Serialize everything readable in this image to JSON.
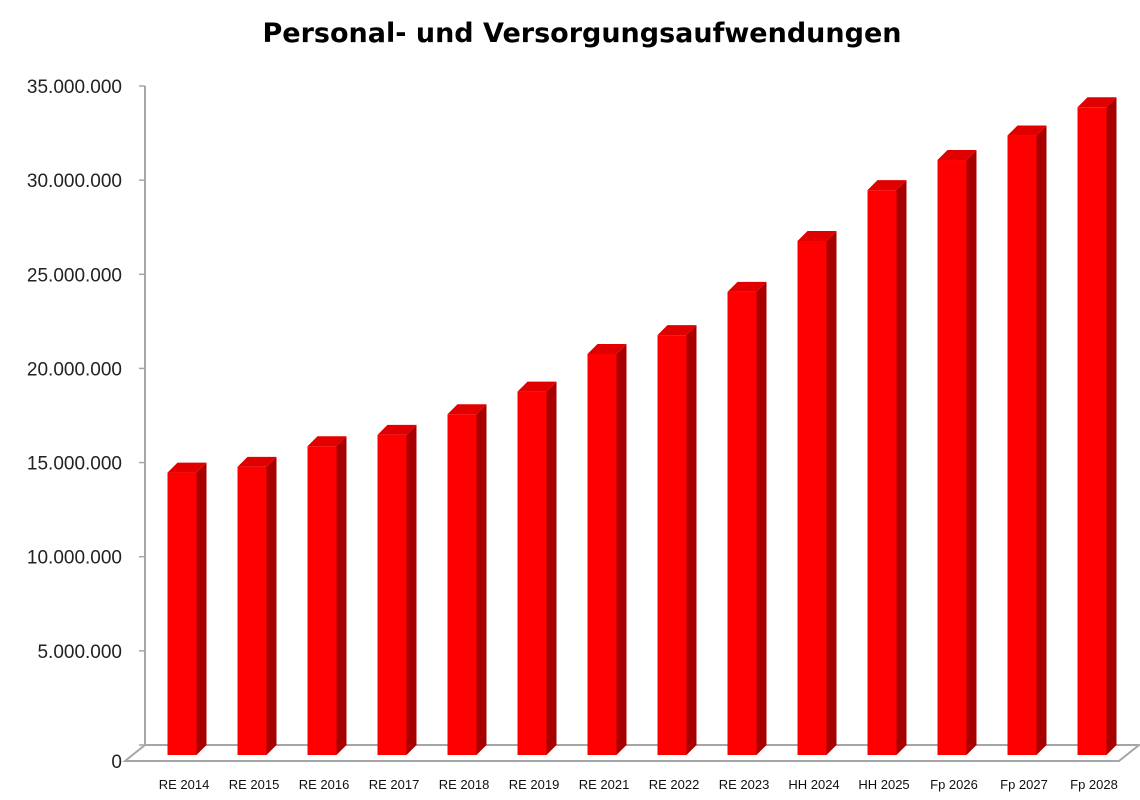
{
  "colors": {
    "bar_front": "#ff0000",
    "bar_side": "#a80000",
    "bar_top": "#e00000",
    "axis": "#a6a6a6"
  },
  "chart_data": {
    "type": "bar",
    "title": "Personal- und Versorgungsaufwendungen",
    "xlabel": "",
    "ylabel": "",
    "ylim": [
      0,
      35000000
    ],
    "yticks": [
      0,
      5000000,
      10000000,
      15000000,
      20000000,
      25000000,
      30000000,
      35000000
    ],
    "ytick_labels": [
      "0",
      "5.000.000",
      "10.000.000",
      "15.000.000",
      "20.000.000",
      "25.000.000",
      "30.000.000",
      "35.000.000"
    ],
    "grid": false,
    "legend": "none",
    "style": "3d-column",
    "categories": [
      "RE 2014",
      "RE 2015",
      "RE 2016",
      "RE 2017",
      "RE 2018",
      "RE 2019",
      "RE 2021",
      "RE 2022",
      "RE 2023",
      "HH 2024",
      "HH 2025",
      "Fp 2026",
      "Fp 2027",
      "Fp 2028"
    ],
    "values": [
      15000000,
      15300000,
      16400000,
      17000000,
      18100000,
      19300000,
      21300000,
      22300000,
      24600000,
      27300000,
      30000000,
      31600000,
      32900000,
      34400000
    ]
  }
}
